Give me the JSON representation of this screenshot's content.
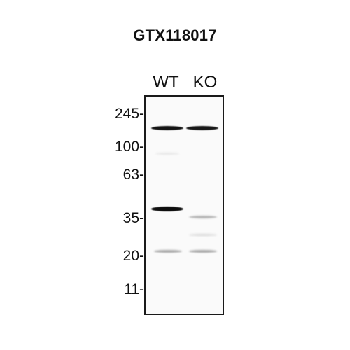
{
  "title": "GTX118017",
  "lanes": [
    "WT",
    "KO"
  ],
  "markers": [
    {
      "label": "245-"
    },
    {
      "label": "100-"
    },
    {
      "label": "63-"
    },
    {
      "label": "35-"
    },
    {
      "label": "20-"
    },
    {
      "label": "11-"
    }
  ],
  "colors": {
    "band": "#111111",
    "membrane": "#fafafa",
    "frame": "#1a1a1a"
  }
}
